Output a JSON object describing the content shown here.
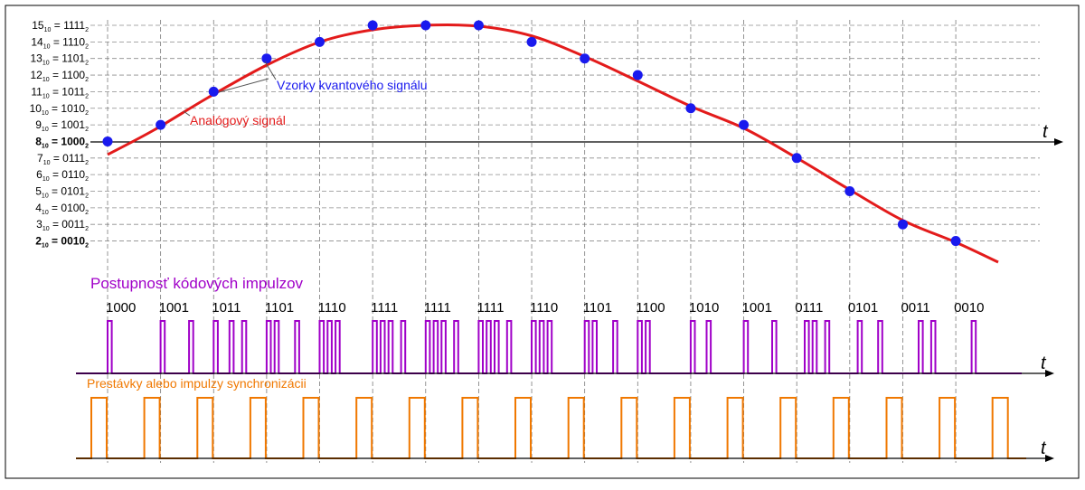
{
  "colors": {
    "analog": "#e31b1b",
    "samples": "#1a1aee",
    "pulses": "#a000c8",
    "sync": "#f07800",
    "grid": "#8c8c8c",
    "axis": "#000000"
  },
  "labels": {
    "axis_t": "t",
    "samples_callout": "Vzorky kvantového signálu",
    "analog_callout": "Analógový signál",
    "pulses_title": "Postupnosť kódových impulzov",
    "sync_title": "Prestávky alebo impulzy synchronizácii"
  },
  "levels": [
    {
      "dec": "15",
      "sub10": "10",
      "bin": "1111",
      "sub2": "2"
    },
    {
      "dec": "14",
      "sub10": "10",
      "bin": "1110",
      "sub2": "2"
    },
    {
      "dec": "13",
      "sub10": "10",
      "bin": "1101",
      "sub2": "2"
    },
    {
      "dec": "12",
      "sub10": "10",
      "bin": "1100",
      "sub2": "2"
    },
    {
      "dec": "11",
      "sub10": "10",
      "bin": "1011",
      "sub2": "2"
    },
    {
      "dec": "10",
      "sub10": "10",
      "bin": "1010",
      "sub2": "2"
    },
    {
      "dec": "9",
      "sub10": "10",
      "bin": "1001",
      "sub2": "2"
    },
    {
      "dec": "8",
      "sub10": "10",
      "bin": "1000",
      "sub2": "2"
    },
    {
      "dec": "7",
      "sub10": "10",
      "bin": "0111",
      "sub2": "2"
    },
    {
      "dec": "6",
      "sub10": "10",
      "bin": "0110",
      "sub2": "2"
    },
    {
      "dec": "5",
      "sub10": "10",
      "bin": "0101",
      "sub2": "2"
    },
    {
      "dec": "4",
      "sub10": "10",
      "bin": "0100",
      "sub2": "2"
    },
    {
      "dec": "3",
      "sub10": "10",
      "bin": "0011",
      "sub2": "2"
    },
    {
      "dec": "2",
      "sub10": "10",
      "bin": "0010",
      "sub2": "2"
    }
  ],
  "samples": [
    8,
    9,
    11,
    13,
    14,
    15,
    15,
    15,
    14,
    13,
    12,
    10,
    9,
    7,
    5,
    3,
    2
  ],
  "codes": [
    "1000",
    "1001",
    "1011",
    "1101",
    "1110",
    "1111",
    "1111",
    "1111",
    "1110",
    "1101",
    "1100",
    "1010",
    "1001",
    "0111",
    "0101",
    "0011",
    "0010"
  ]
}
